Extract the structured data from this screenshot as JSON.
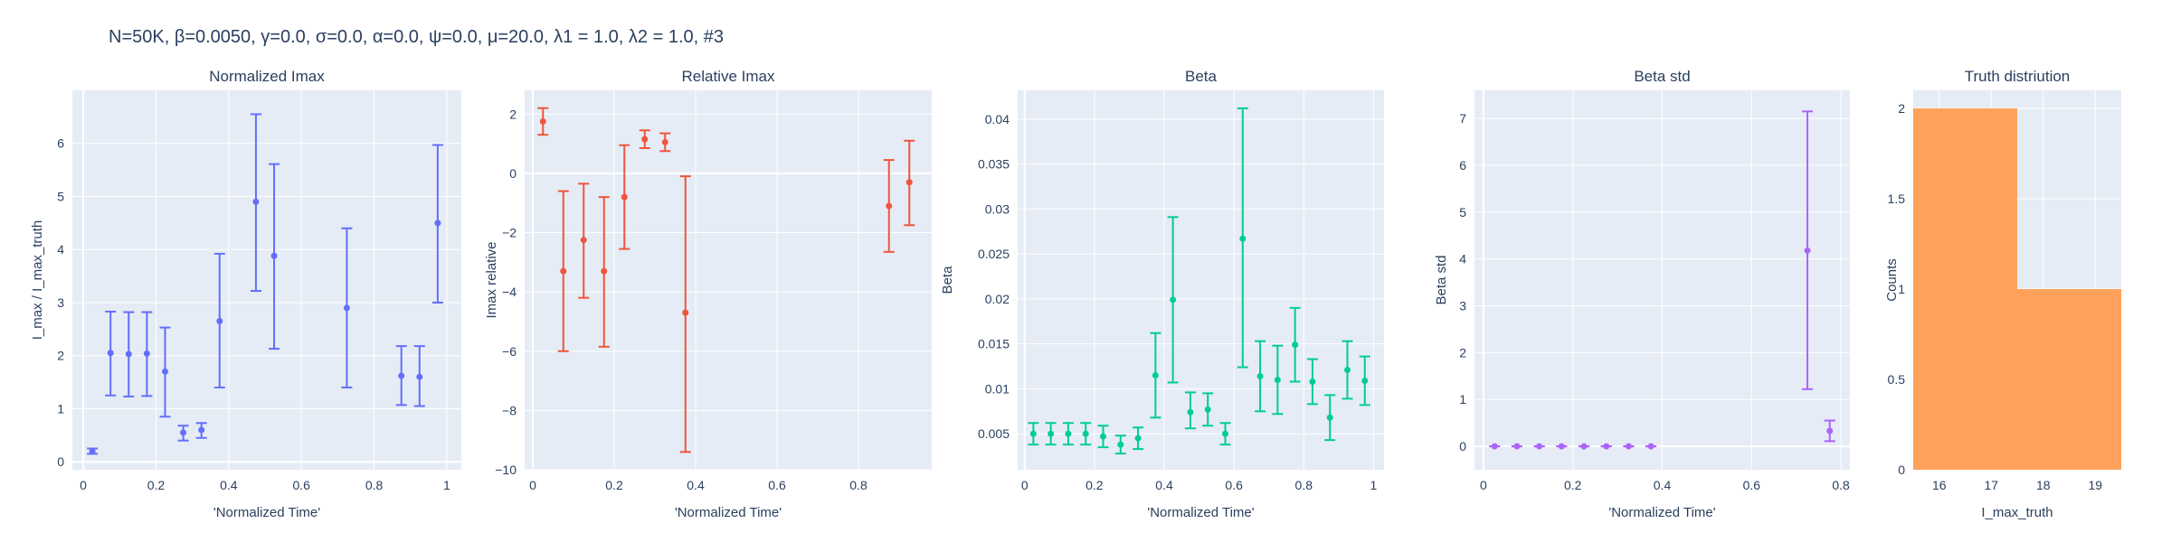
{
  "title": "N=50K, β=0.0050, γ=0.0, σ=0.0,  α=0.0, ψ=0.0, μ=20.0, λ1 = 1.0, λ2 = 1.0, #3",
  "colors": {
    "plot_bg": "#e5ecf6",
    "grid": "#ffffff",
    "text": "#2a3f5f"
  },
  "chart_data": [
    {
      "type": "scatter",
      "title": "Normalized Imax",
      "xlabel": "'Normalized Time'",
      "ylabel": "I_max / I_max_truth",
      "xlim": [
        -0.03,
        1.04
      ],
      "ylim": [
        -0.15,
        7.0
      ],
      "xticks": [
        0,
        0.2,
        0.4,
        0.6,
        0.8,
        1
      ],
      "xtick_labels": [
        "0",
        "0.2",
        "0.4",
        "0.6",
        "0.8",
        "1"
      ],
      "yticks": [
        0,
        1,
        2,
        3,
        4,
        5,
        6
      ],
      "ytick_labels": [
        "0",
        "1",
        "2",
        "3",
        "4",
        "5",
        "6"
      ],
      "color": "#636efa",
      "series": [
        {
          "x": [
            0.025,
            0.075,
            0.125,
            0.175,
            0.225,
            0.275,
            0.325,
            0.375,
            0.475,
            0.525,
            0.725,
            0.875,
            0.925,
            0.975
          ],
          "y": [
            0.2,
            2.05,
            2.03,
            2.04,
            1.7,
            0.55,
            0.6,
            2.65,
            4.9,
            3.88,
            2.9,
            1.62,
            1.6,
            4.5
          ],
          "err_plus": [
            0.05,
            0.78,
            0.79,
            0.78,
            0.83,
            0.13,
            0.13,
            1.27,
            1.65,
            1.73,
            1.5,
            0.56,
            0.58,
            1.47
          ],
          "err_minus": [
            0.05,
            0.8,
            0.8,
            0.8,
            0.85,
            0.15,
            0.15,
            1.25,
            1.68,
            1.75,
            1.5,
            0.55,
            0.55,
            1.5
          ]
        }
      ],
      "grid": true
    },
    {
      "type": "scatter",
      "title": "Relative Imax",
      "xlabel": "'Normalized Time'",
      "ylabel": "Imax relative",
      "xlim": [
        -0.02,
        0.98
      ],
      "ylim": [
        -10.0,
        2.8
      ],
      "xticks": [
        0,
        0.2,
        0.4,
        0.6,
        0.8
      ],
      "xtick_labels": [
        "0",
        "0.2",
        "0.4",
        "0.6",
        "0.8"
      ],
      "yticks": [
        -10,
        -8,
        -6,
        -4,
        -2,
        0,
        2
      ],
      "ytick_labels": [
        "−10",
        "−8",
        "−6",
        "−4",
        "−2",
        "0",
        "2"
      ],
      "color": "#ef553b",
      "series": [
        {
          "x": [
            0.025,
            0.075,
            0.125,
            0.175,
            0.225,
            0.275,
            0.325,
            0.375,
            0.875,
            0.925
          ],
          "y": [
            1.75,
            -3.3,
            -2.25,
            -3.3,
            -0.8,
            1.15,
            1.05,
            -4.7,
            -1.1,
            -0.3
          ],
          "err_plus": [
            0.45,
            2.7,
            1.9,
            2.5,
            1.75,
            0.3,
            0.3,
            4.6,
            1.55,
            1.4
          ],
          "err_minus": [
            0.45,
            2.7,
            1.95,
            2.55,
            1.75,
            0.3,
            0.3,
            4.7,
            1.55,
            1.45
          ]
        }
      ],
      "grid": true
    },
    {
      "type": "scatter",
      "title": "Beta",
      "xlabel": "'Normalized Time'",
      "ylabel": "Beta",
      "xlim": [
        -0.02,
        1.03
      ],
      "ylim": [
        0.001,
        0.0432
      ],
      "xticks": [
        0,
        0.2,
        0.4,
        0.6,
        0.8,
        1
      ],
      "xtick_labels": [
        "0",
        "0.2",
        "0.4",
        "0.6",
        "0.8",
        "1"
      ],
      "yticks": [
        0.005,
        0.01,
        0.015,
        0.02,
        0.025,
        0.03,
        0.035,
        0.04
      ],
      "ytick_labels": [
        "0.005",
        "0.01",
        "0.015",
        "0.02",
        "0.025",
        "0.03",
        "0.035",
        "0.04"
      ],
      "color": "#00cc96",
      "series": [
        {
          "x": [
            0.025,
            0.075,
            0.125,
            0.175,
            0.225,
            0.275,
            0.325,
            0.375,
            0.425,
            0.475,
            0.525,
            0.575,
            0.625,
            0.675,
            0.725,
            0.775,
            0.825,
            0.875,
            0.925,
            0.975
          ],
          "y": [
            0.005,
            0.005,
            0.005,
            0.005,
            0.0047,
            0.0038,
            0.0045,
            0.0115,
            0.0199,
            0.0074,
            0.0077,
            0.005,
            0.0267,
            0.0114,
            0.011,
            0.0149,
            0.0108,
            0.0068,
            0.0121,
            0.0109
          ],
          "err_plus": [
            0.0012,
            0.0012,
            0.0012,
            0.0012,
            0.0012,
            0.001,
            0.0012,
            0.0047,
            0.0092,
            0.0022,
            0.0018,
            0.0012,
            0.0145,
            0.0039,
            0.0038,
            0.0041,
            0.0025,
            0.0025,
            0.0032,
            0.0027
          ],
          "err_minus": [
            0.0012,
            0.0012,
            0.0012,
            0.0012,
            0.0012,
            0.001,
            0.0012,
            0.0047,
            0.0092,
            0.0018,
            0.0018,
            0.0012,
            0.0143,
            0.0039,
            0.0038,
            0.0041,
            0.0025,
            0.0025,
            0.0032,
            0.0027
          ]
        }
      ],
      "grid": true
    },
    {
      "type": "scatter",
      "title": "Beta std",
      "xlabel": "'Normalized Time'",
      "ylabel": "Beta std",
      "xlim": [
        -0.02,
        0.82
      ],
      "ylim": [
        -0.5,
        7.6
      ],
      "xticks": [
        0,
        0.2,
        0.4,
        0.6,
        0.8
      ],
      "xtick_labels": [
        "0",
        "0.2",
        "0.4",
        "0.6",
        "0.8"
      ],
      "yticks": [
        0,
        1,
        2,
        3,
        4,
        5,
        6,
        7
      ],
      "ytick_labels": [
        "0",
        "1",
        "2",
        "3",
        "4",
        "5",
        "6",
        "7"
      ],
      "color": "#ab63fa",
      "series": [
        {
          "x": [
            0.025,
            0.075,
            0.125,
            0.175,
            0.225,
            0.275,
            0.325,
            0.375,
            0.725,
            0.775
          ],
          "y": [
            0.0,
            0.0,
            0.0,
            0.0,
            0.0,
            0.0,
            0.0,
            0.0,
            4.18,
            0.33
          ],
          "err_plus": [
            0.0,
            0.0,
            0.0,
            0.0,
            0.0,
            0.0,
            0.0,
            0.0,
            2.97,
            0.22
          ],
          "err_minus": [
            0.0,
            0.0,
            0.0,
            0.0,
            0.0,
            0.0,
            0.0,
            0.0,
            2.96,
            0.22
          ]
        }
      ],
      "grid": true
    },
    {
      "type": "bar",
      "title": "Truth distriution",
      "xlabel": "I_max_truth",
      "ylabel": "Counts",
      "xlim": [
        15.5,
        19.5
      ],
      "ylim": [
        0,
        2.1
      ],
      "xticks": [
        16,
        17,
        18,
        19
      ],
      "xtick_labels": [
        "16",
        "17",
        "18",
        "19"
      ],
      "yticks": [
        0,
        0.5,
        1,
        1.5,
        2
      ],
      "ytick_labels": [
        "0",
        "0.5",
        "1",
        "1.5",
        "2"
      ],
      "color": "#ffa15a",
      "bins": [
        {
          "x0": 15.5,
          "x1": 17.5,
          "count": 2
        },
        {
          "x0": 17.5,
          "x1": 19.5,
          "count": 1
        }
      ],
      "grid": true
    }
  ]
}
